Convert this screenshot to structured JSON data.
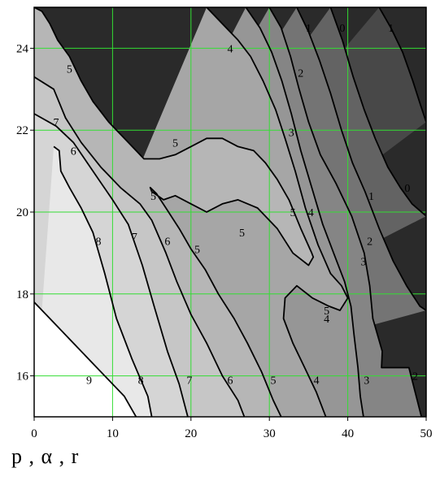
{
  "caption": "p , α , r",
  "chart_data": {
    "type": "contour",
    "title": "",
    "xlabel": "p , α , r",
    "ylabel": "",
    "xlim": [
      0,
      50
    ],
    "ylim": [
      15,
      25
    ],
    "x_ticks": [
      "0",
      "10",
      "20",
      "30",
      "40",
      "50"
    ],
    "y_ticks": [
      "16",
      "18",
      "20",
      "22",
      "24"
    ],
    "grid": true,
    "grid_color": "#33dd33",
    "levels": [
      {
        "level": "9",
        "color": "#ffffff",
        "label_at": [
          [
            7,
            15.9
          ]
        ],
        "points": [
          [
            0,
            17.8
          ],
          [
            2,
            17.4
          ],
          [
            5,
            16.8
          ],
          [
            8,
            16.2
          ],
          [
            11.5,
            15.5
          ],
          [
            13,
            15
          ]
        ]
      },
      {
        "level": "8",
        "color": "#e8e8e8",
        "label_at": [
          [
            8.2,
            19.3
          ],
          [
            13.6,
            15.9
          ]
        ],
        "points": [
          [
            2.5,
            21.6
          ],
          [
            3.2,
            21.5
          ],
          [
            3.4,
            21.0
          ],
          [
            4.5,
            20.6
          ],
          [
            6,
            20.1
          ],
          [
            7.5,
            19.5
          ],
          [
            9,
            18.5
          ],
          [
            10.5,
            17.4
          ],
          [
            12.5,
            16.4
          ],
          [
            14.5,
            15.5
          ],
          [
            15,
            15
          ]
        ]
      },
      {
        "level": "7",
        "color": "#d5d5d5",
        "label_at": [
          [
            2.8,
            22.2
          ],
          [
            12.8,
            19.4
          ],
          [
            19.8,
            15.9
          ]
        ],
        "points": [
          [
            0,
            22.4
          ],
          [
            2.8,
            22.1
          ],
          [
            5,
            21.7
          ],
          [
            7.5,
            21.0
          ],
          [
            10,
            20.3
          ],
          [
            12,
            19.7
          ],
          [
            13.8,
            18.7
          ],
          [
            15.3,
            17.7
          ],
          [
            17,
            16.6
          ],
          [
            18.5,
            15.8
          ],
          [
            19.6,
            15
          ]
        ]
      },
      {
        "level": "6",
        "color": "#c6c6c6",
        "label_at": [
          [
            5,
            21.5
          ],
          [
            17,
            19.3
          ],
          [
            25,
            15.9
          ]
        ],
        "points": [
          [
            0,
            23.3
          ],
          [
            2.5,
            23.0
          ],
          [
            4,
            22.3
          ],
          [
            6,
            21.7
          ],
          [
            8.5,
            21.1
          ],
          [
            11,
            20.6
          ],
          [
            13.5,
            20.2
          ],
          [
            15,
            19.8
          ],
          [
            16.8,
            19.0
          ],
          [
            18.2,
            18.3
          ],
          [
            20,
            17.5
          ],
          [
            22,
            16.8
          ],
          [
            24,
            16.0
          ],
          [
            26,
            15.4
          ],
          [
            26.8,
            15
          ]
        ]
      },
      {
        "level": "5",
        "color": "#b6b6b6",
        "label_at": [
          [
            4.5,
            23.5
          ],
          [
            18,
            21.7
          ],
          [
            15.2,
            20.4
          ],
          [
            20.8,
            19.1
          ],
          [
            26.5,
            19.5
          ],
          [
            33,
            20.0
          ],
          [
            37.3,
            17.6
          ],
          [
            30.5,
            15.9
          ]
        ],
        "points": [
          [
            0,
            25
          ],
          [
            1,
            24.9
          ],
          [
            2,
            24.6
          ],
          [
            3,
            24.2
          ],
          [
            4.5,
            23.8
          ],
          [
            6,
            23.2
          ],
          [
            7.5,
            22.7
          ],
          [
            9.5,
            22.2
          ],
          [
            12,
            21.7
          ],
          [
            14,
            21.3
          ],
          [
            16,
            21.3
          ],
          [
            18,
            21.4
          ],
          [
            20,
            21.6
          ],
          [
            22,
            21.8
          ],
          [
            24,
            21.8
          ],
          [
            26,
            21.6
          ],
          [
            28,
            21.5
          ],
          [
            29.5,
            21.2
          ],
          [
            31,
            20.8
          ],
          [
            32.5,
            20.3
          ],
          [
            34,
            19.6
          ],
          [
            35.4,
            19.0
          ],
          [
            35.6,
            18.9
          ],
          [
            35,
            18.7
          ],
          [
            33,
            19.0
          ],
          [
            31,
            19.6
          ],
          [
            28.5,
            20.1
          ],
          [
            26,
            20.3
          ],
          [
            24,
            20.2
          ],
          [
            22,
            20.0
          ],
          [
            20,
            20.2
          ],
          [
            18,
            20.4
          ],
          [
            16.5,
            20.3
          ],
          [
            15,
            20.5
          ],
          [
            14.8,
            20.6
          ],
          [
            15.6,
            20.45
          ],
          [
            16.8,
            20.1
          ],
          [
            18.5,
            19.6
          ],
          [
            20,
            19.1
          ],
          [
            21.8,
            18.6
          ],
          [
            23.5,
            18.0
          ],
          [
            25.5,
            17.4
          ],
          [
            27.2,
            16.8
          ],
          [
            29,
            16.1
          ],
          [
            30.5,
            15.4
          ],
          [
            31.5,
            15
          ]
        ]
      },
      {
        "level": "4",
        "color": "#a6a6a6",
        "label_at": [
          [
            25,
            24.0
          ],
          [
            35.3,
            20.0
          ],
          [
            37.3,
            17.4
          ],
          [
            36,
            15.9
          ]
        ],
        "points": [
          [
            22,
            25
          ],
          [
            24,
            24.6
          ],
          [
            26,
            24.2
          ],
          [
            27.6,
            23.8
          ],
          [
            29.2,
            23.2
          ],
          [
            30.8,
            22.5
          ],
          [
            32,
            21.8
          ],
          [
            33.3,
            21.0
          ],
          [
            34.6,
            20.1
          ],
          [
            36.2,
            19.2
          ],
          [
            37.8,
            18.5
          ],
          [
            39.2,
            18.2
          ],
          [
            40.0,
            17.9
          ],
          [
            39.0,
            17.6
          ],
          [
            37.6,
            17.7
          ],
          [
            35.5,
            17.9
          ],
          [
            33.5,
            18.2
          ],
          [
            32,
            17.9
          ],
          [
            31.8,
            17.4
          ],
          [
            33,
            16.8
          ],
          [
            34.5,
            16.2
          ],
          [
            36,
            15.6
          ],
          [
            37.2,
            15
          ]
        ]
      },
      {
        "level": "3",
        "color": "#969696",
        "label_at": [
          [
            32.8,
            21.95
          ],
          [
            42,
            18.8
          ],
          [
            42.4,
            15.9
          ]
        ],
        "points": [
          [
            27,
            25
          ],
          [
            28.8,
            24.5
          ],
          [
            30.3,
            23.9
          ],
          [
            31.6,
            23.2
          ],
          [
            32.8,
            22.4
          ],
          [
            34,
            21.5
          ],
          [
            35.4,
            20.6
          ],
          [
            36.8,
            19.7
          ],
          [
            38.2,
            19.0
          ],
          [
            39.6,
            18.3
          ],
          [
            40.4,
            17.7
          ],
          [
            40.8,
            17.0
          ],
          [
            41.3,
            16.2
          ],
          [
            41.6,
            15.5
          ],
          [
            42,
            15
          ]
        ]
      },
      {
        "level": "2",
        "color": "#858585",
        "label_at": [
          [
            34,
            23.4
          ],
          [
            42.8,
            19.3
          ],
          [
            48.6,
            16.0
          ]
        ],
        "points": [
          [
            30,
            25
          ],
          [
            31.5,
            24.5
          ],
          [
            32.7,
            23.8
          ],
          [
            33.8,
            23.0
          ],
          [
            35,
            22.2
          ],
          [
            36.5,
            21.4
          ],
          [
            38.5,
            20.7
          ],
          [
            40.5,
            19.9
          ],
          [
            42.1,
            19.0
          ],
          [
            42.8,
            18.2
          ],
          [
            43.2,
            17.4
          ],
          [
            44.4,
            16.6
          ],
          [
            44.3,
            16.2
          ],
          [
            47.8,
            16.2
          ],
          [
            48.6,
            15.6
          ],
          [
            49.4,
            15
          ]
        ]
      },
      {
        "level": "1",
        "color": "#747474",
        "label_at": [
          [
            35,
            24.5
          ],
          [
            43,
            20.4
          ],
          [
            45.5,
            24.5
          ]
        ],
        "points": [
          [
            33.5,
            25
          ],
          [
            35,
            24.4
          ],
          [
            36.4,
            23.7
          ],
          [
            37.8,
            22.9
          ],
          [
            39.2,
            22.0
          ],
          [
            40.6,
            21.2
          ],
          [
            42.2,
            20.5
          ],
          [
            44,
            19.6
          ],
          [
            45.8,
            18.8
          ],
          [
            47.5,
            18.2
          ],
          [
            49.2,
            17.7
          ],
          [
            50,
            17.6
          ]
        ]
      },
      {
        "level": "0",
        "color": "#636363",
        "label_at": [
          [
            39.3,
            24.5
          ],
          [
            47.6,
            20.6
          ]
        ],
        "points": [
          [
            37.8,
            25
          ],
          [
            39.3,
            24.2
          ],
          [
            40.7,
            23.3
          ],
          [
            42.1,
            22.5
          ],
          [
            43.5,
            21.8
          ],
          [
            45.1,
            21.1
          ],
          [
            46.7,
            20.6
          ],
          [
            48.2,
            20.2
          ],
          [
            50,
            19.9
          ]
        ]
      },
      {
        "level": "",
        "color": "#484848",
        "label_at": [],
        "points": [
          [
            44,
            25
          ],
          [
            45.5,
            24.5
          ],
          [
            47,
            23.9
          ],
          [
            48.3,
            23.2
          ],
          [
            49.3,
            22.6
          ],
          [
            50,
            22.2
          ]
        ]
      }
    ],
    "top_right_color": "#2a2a2a"
  }
}
